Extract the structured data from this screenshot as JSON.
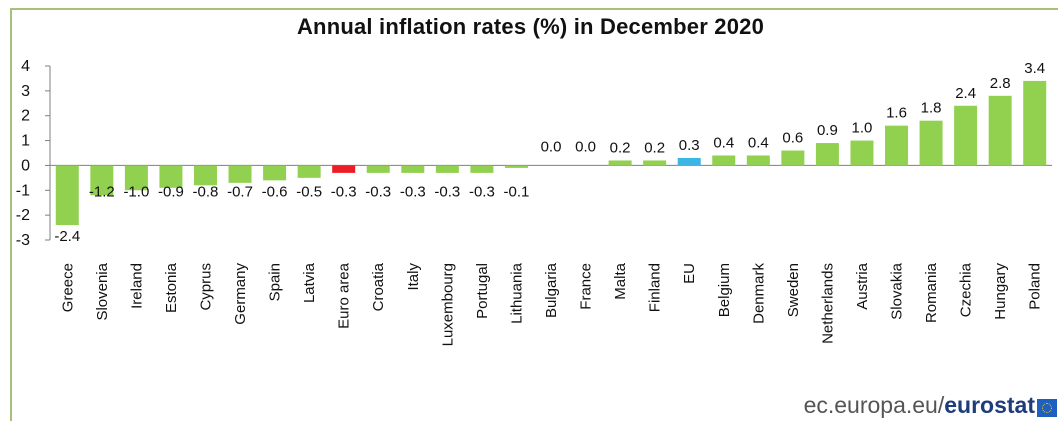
{
  "chart_data": {
    "type": "bar",
    "title": "Annual inflation rates (%) in December 2020",
    "xlabel": "",
    "ylabel": "",
    "ylim": [
      -3,
      4
    ],
    "yticks": [
      4,
      3,
      2,
      1,
      0,
      -1,
      -2,
      -3
    ],
    "categories": [
      "Greece",
      "Slovenia",
      "Ireland",
      "Estonia",
      "Cyprus",
      "Germany",
      "Spain",
      "Latvia",
      "Euro area",
      "Croatia",
      "Italy",
      "Luxembourg",
      "Portugal",
      "Lithuania",
      "Bulgaria",
      "France",
      "Malta",
      "Finland",
      "EU",
      "Belgium",
      "Denmark",
      "Sweden",
      "Netherlands",
      "Austria",
      "Slovakia",
      "Romania",
      "Czechia",
      "Hungary",
      "Poland"
    ],
    "values": [
      -2.4,
      -1.2,
      -1.0,
      -0.9,
      -0.8,
      -0.7,
      -0.6,
      -0.5,
      -0.3,
      -0.3,
      -0.3,
      -0.3,
      -0.3,
      -0.1,
      0.0,
      0.0,
      0.2,
      0.2,
      0.3,
      0.4,
      0.4,
      0.6,
      0.9,
      1.0,
      1.6,
      1.8,
      2.4,
      2.8,
      3.4
    ],
    "value_labels": [
      "-2.4",
      "-1.2",
      "-1.0",
      "-0.9",
      "-0.8",
      "-0.7",
      "-0.6",
      "-0.5",
      "-0.3",
      "-0.3",
      "-0.3",
      "-0.3",
      "-0.3",
      "-0.1",
      "0.0",
      "0.0",
      "0.2",
      "0.2",
      "0.3",
      "0.4",
      "0.4",
      "0.6",
      "0.9",
      "1.0",
      "1.6",
      "1.8",
      "2.4",
      "2.8",
      "3.4"
    ],
    "colors": {
      "default": "#92d050",
      "Euro area": "#ee1c25",
      "EU": "#3cb4e5"
    },
    "grid": false,
    "legend": "none"
  },
  "source": {
    "domain": "ec.europa.eu/",
    "brand": "eurostat",
    "flag_icon": "eu-flag-icon"
  }
}
